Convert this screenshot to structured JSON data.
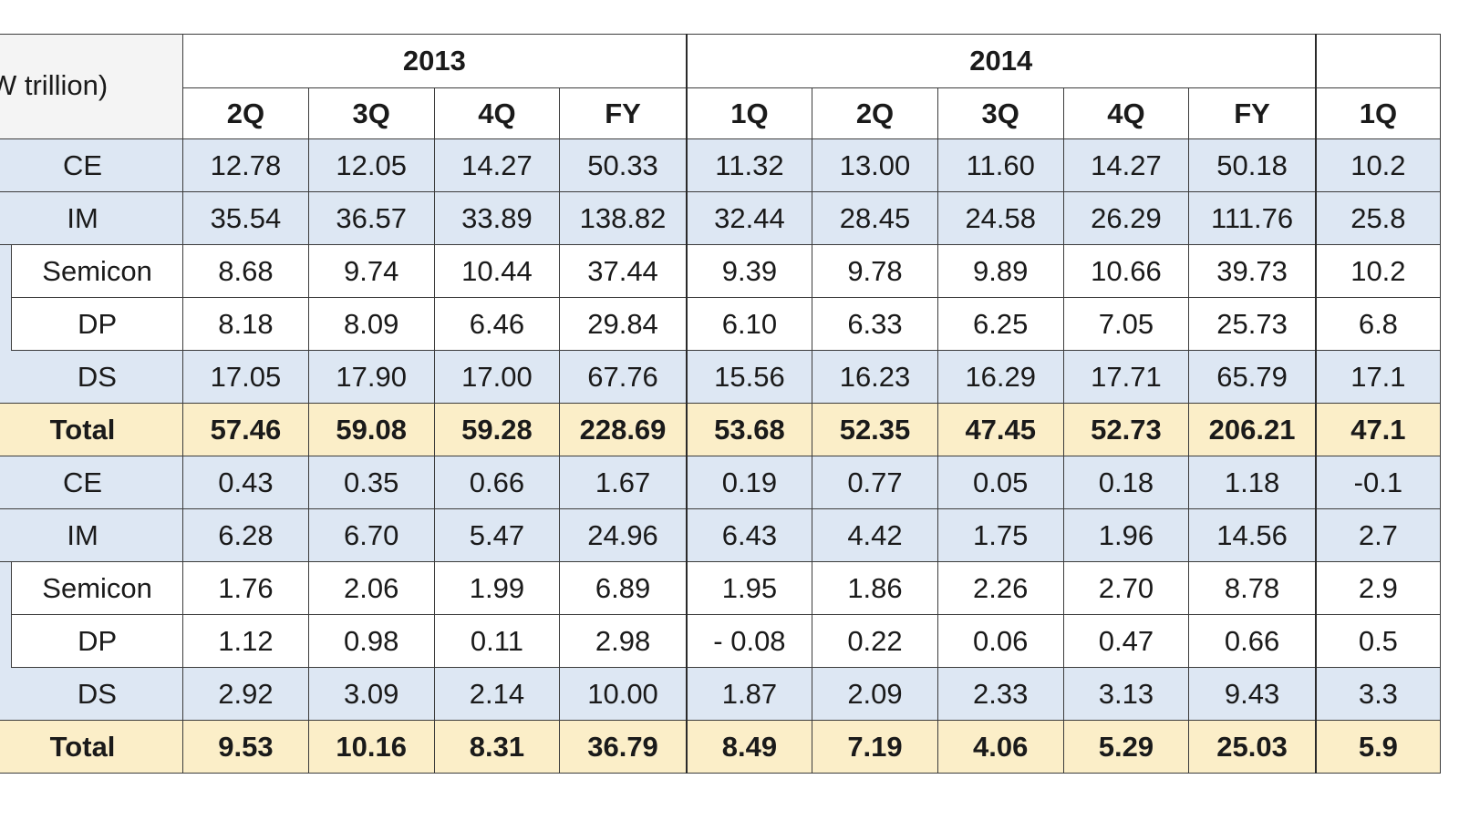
{
  "unit_label": "W trillion)",
  "year_headers": [
    "2013",
    "2014",
    ""
  ],
  "quarter_headers": [
    "2Q",
    "3Q",
    "4Q",
    "FY",
    "1Q",
    "2Q",
    "3Q",
    "4Q",
    "FY",
    "1Q"
  ],
  "sales": [
    {
      "label": "CE",
      "style": "blue",
      "indent": false,
      "values": [
        "12.78",
        "12.05",
        "14.27",
        "50.33",
        "11.32",
        "13.00",
        "11.60",
        "14.27",
        "50.18",
        "10.2"
      ]
    },
    {
      "label": "IM",
      "style": "blue",
      "indent": false,
      "values": [
        "35.54",
        "36.57",
        "33.89",
        "138.82",
        "32.44",
        "28.45",
        "24.58",
        "26.29",
        "111.76",
        "25.8"
      ]
    },
    {
      "label": "Semicon",
      "style": "white",
      "indent": true,
      "values": [
        "8.68",
        "9.74",
        "10.44",
        "37.44",
        "9.39",
        "9.78",
        "9.89",
        "10.66",
        "39.73",
        "10.2"
      ]
    },
    {
      "label": "DP",
      "style": "white",
      "indent": true,
      "values": [
        "8.18",
        "8.09",
        "6.46",
        "29.84",
        "6.10",
        "6.33",
        "6.25",
        "7.05",
        "25.73",
        "6.8"
      ]
    },
    {
      "label": "DS",
      "style": "blue",
      "indent": true,
      "values": [
        "17.05",
        "17.90",
        "17.00",
        "67.76",
        "15.56",
        "16.23",
        "16.29",
        "17.71",
        "65.79",
        "17.1"
      ]
    },
    {
      "label": "Total",
      "style": "total",
      "indent": false,
      "values": [
        "57.46",
        "59.08",
        "59.28",
        "228.69",
        "53.68",
        "52.35",
        "47.45",
        "52.73",
        "206.21",
        "47.1"
      ]
    }
  ],
  "op_profit": [
    {
      "label": "CE",
      "style": "blue",
      "indent": false,
      "values": [
        "0.43",
        "0.35",
        "0.66",
        "1.67",
        "0.19",
        "0.77",
        "0.05",
        "0.18",
        "1.18",
        "-0.1"
      ]
    },
    {
      "label": "IM",
      "style": "blue",
      "indent": false,
      "values": [
        "6.28",
        "6.70",
        "5.47",
        "24.96",
        "6.43",
        "4.42",
        "1.75",
        "1.96",
        "14.56",
        "2.7"
      ]
    },
    {
      "label": "Semicon",
      "style": "white",
      "indent": true,
      "values": [
        "1.76",
        "2.06",
        "1.99",
        "6.89",
        "1.95",
        "1.86",
        "2.26",
        "2.70",
        "8.78",
        "2.9"
      ]
    },
    {
      "label": "DP",
      "style": "white",
      "indent": true,
      "values": [
        "1.12",
        "0.98",
        "0.11",
        "2.98",
        "- 0.08",
        "0.22",
        "0.06",
        "0.47",
        "0.66",
        "0.5"
      ]
    },
    {
      "label": "DS",
      "style": "blue",
      "indent": true,
      "values": [
        "2.92",
        "3.09",
        "2.14",
        "10.00",
        "1.87",
        "2.09",
        "2.33",
        "3.13",
        "9.43",
        "3.3"
      ]
    },
    {
      "label": "Total",
      "style": "total",
      "indent": false,
      "values": [
        "9.53",
        "10.16",
        "8.31",
        "36.79",
        "8.49",
        "7.19",
        "4.06",
        "5.29",
        "25.03",
        "5.9"
      ]
    }
  ]
}
